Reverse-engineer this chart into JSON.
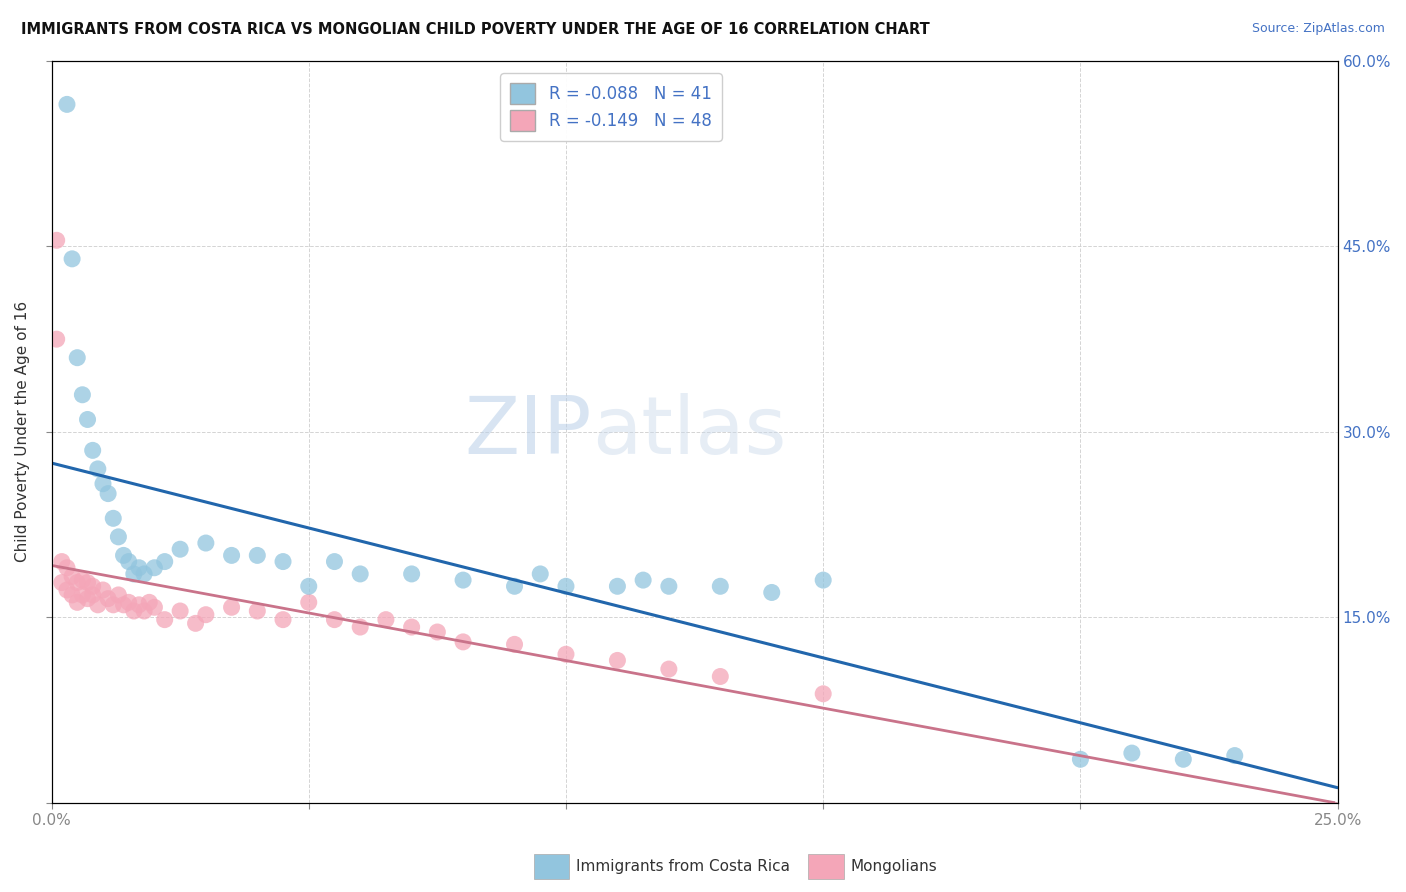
{
  "title": "IMMIGRANTS FROM COSTA RICA VS MONGOLIAN CHILD POVERTY UNDER THE AGE OF 16 CORRELATION CHART",
  "source": "Source: ZipAtlas.com",
  "ylabel": "Child Poverty Under the Age of 16",
  "legend_label1": "Immigrants from Costa Rica",
  "legend_label2": "Mongolians",
  "R1": -0.088,
  "N1": 41,
  "R2": -0.149,
  "N2": 48,
  "xlim": [
    0.0,
    0.25
  ],
  "ylim": [
    0.0,
    0.6
  ],
  "xticks": [
    0.0,
    0.05,
    0.1,
    0.15,
    0.2,
    0.25
  ],
  "yticks": [
    0.0,
    0.15,
    0.3,
    0.45,
    0.6
  ],
  "xticklabels_edge": [
    "0.0%",
    "25.0%"
  ],
  "yticklabels_right": [
    "",
    "15.0%",
    "30.0%",
    "45.0%",
    "60.0%"
  ],
  "color_blue": "#92c5de",
  "color_pink": "#f4a6b8",
  "color_blue_line": "#2166ac",
  "color_pink_line": "#c9738a",
  "watermark_zip": "ZIP",
  "watermark_atlas": "atlas",
  "blue_x": [
    0.003,
    0.004,
    0.005,
    0.006,
    0.007,
    0.008,
    0.009,
    0.01,
    0.011,
    0.012,
    0.013,
    0.014,
    0.015,
    0.016,
    0.017,
    0.018,
    0.02,
    0.022,
    0.025,
    0.03,
    0.035,
    0.04,
    0.045,
    0.05,
    0.055,
    0.06,
    0.07,
    0.08,
    0.09,
    0.095,
    0.1,
    0.11,
    0.115,
    0.12,
    0.13,
    0.14,
    0.15,
    0.2,
    0.21,
    0.22,
    0.23
  ],
  "blue_y": [
    0.565,
    0.44,
    0.36,
    0.33,
    0.31,
    0.285,
    0.27,
    0.258,
    0.25,
    0.23,
    0.215,
    0.2,
    0.195,
    0.185,
    0.19,
    0.185,
    0.19,
    0.195,
    0.205,
    0.21,
    0.2,
    0.2,
    0.195,
    0.175,
    0.195,
    0.185,
    0.185,
    0.18,
    0.175,
    0.185,
    0.175,
    0.175,
    0.18,
    0.175,
    0.175,
    0.17,
    0.18,
    0.035,
    0.04,
    0.035,
    0.038
  ],
  "pink_x": [
    0.001,
    0.001,
    0.002,
    0.002,
    0.003,
    0.003,
    0.004,
    0.004,
    0.005,
    0.005,
    0.006,
    0.006,
    0.007,
    0.007,
    0.008,
    0.008,
    0.009,
    0.01,
    0.011,
    0.012,
    0.013,
    0.014,
    0.015,
    0.016,
    0.017,
    0.018,
    0.019,
    0.02,
    0.022,
    0.025,
    0.028,
    0.03,
    0.035,
    0.04,
    0.045,
    0.05,
    0.055,
    0.06,
    0.065,
    0.07,
    0.075,
    0.08,
    0.09,
    0.1,
    0.11,
    0.12,
    0.13,
    0.15
  ],
  "pink_y": [
    0.455,
    0.375,
    0.195,
    0.178,
    0.19,
    0.172,
    0.183,
    0.168,
    0.178,
    0.162,
    0.18,
    0.168,
    0.178,
    0.165,
    0.175,
    0.168,
    0.16,
    0.172,
    0.165,
    0.16,
    0.168,
    0.16,
    0.162,
    0.155,
    0.16,
    0.155,
    0.162,
    0.158,
    0.148,
    0.155,
    0.145,
    0.152,
    0.158,
    0.155,
    0.148,
    0.162,
    0.148,
    0.142,
    0.148,
    0.142,
    0.138,
    0.13,
    0.128,
    0.12,
    0.115,
    0.108,
    0.102,
    0.088
  ]
}
